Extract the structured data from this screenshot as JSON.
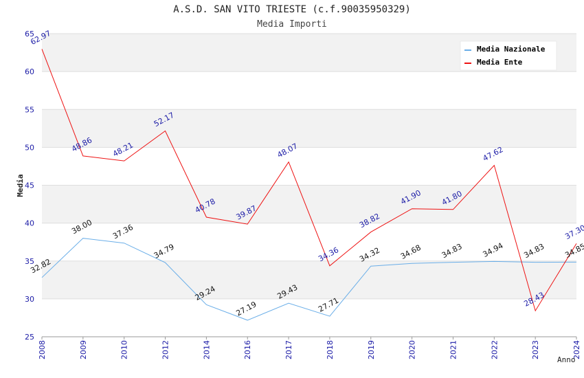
{
  "chart_data": {
    "type": "line",
    "title": "A.S.D. SAN VITO TRIESTE (c.f.90035950329)",
    "subtitle": "Media Importi",
    "xlabel": "Anno",
    "ylabel": "Media",
    "categories": [
      "2008",
      "2009",
      "2010",
      "2012",
      "2014",
      "2016",
      "2017",
      "2018",
      "2019",
      "2020",
      "2021",
      "2022",
      "2023",
      "2024"
    ],
    "ylim": [
      25,
      65
    ],
    "yticks": [
      25,
      30,
      35,
      40,
      45,
      50,
      55,
      60,
      65
    ],
    "grid": true,
    "legend_position": "top-right",
    "series": [
      {
        "name": "Media Nazionale",
        "color": "#6aaee8",
        "label_color": "#111111",
        "values": [
          32.82,
          38.0,
          37.36,
          34.79,
          29.24,
          27.19,
          29.43,
          27.71,
          34.32,
          34.68,
          34.83,
          34.94,
          34.83,
          34.85
        ],
        "labels": [
          "32.82",
          "38.00",
          "37.36",
          "34.79",
          "29.24",
          "27.19",
          "29.43",
          "27.71",
          "34.32",
          "34.68",
          "34.83",
          "34.94",
          "34.83",
          "34.85"
        ]
      },
      {
        "name": "Media Ente",
        "color": "#ee1111",
        "label_color": "#1a1aa6",
        "values": [
          62.97,
          48.86,
          48.21,
          52.17,
          40.78,
          39.87,
          48.07,
          34.36,
          38.82,
          41.9,
          41.8,
          47.62,
          28.43,
          37.3
        ],
        "labels": [
          "62.97",
          "48.86",
          "48.21",
          "52.17",
          "40.78",
          "39.87",
          "48.07",
          "34.36",
          "38.82",
          "41.90",
          "41.80",
          "47.62",
          "28.43",
          "37.30"
        ]
      }
    ]
  }
}
